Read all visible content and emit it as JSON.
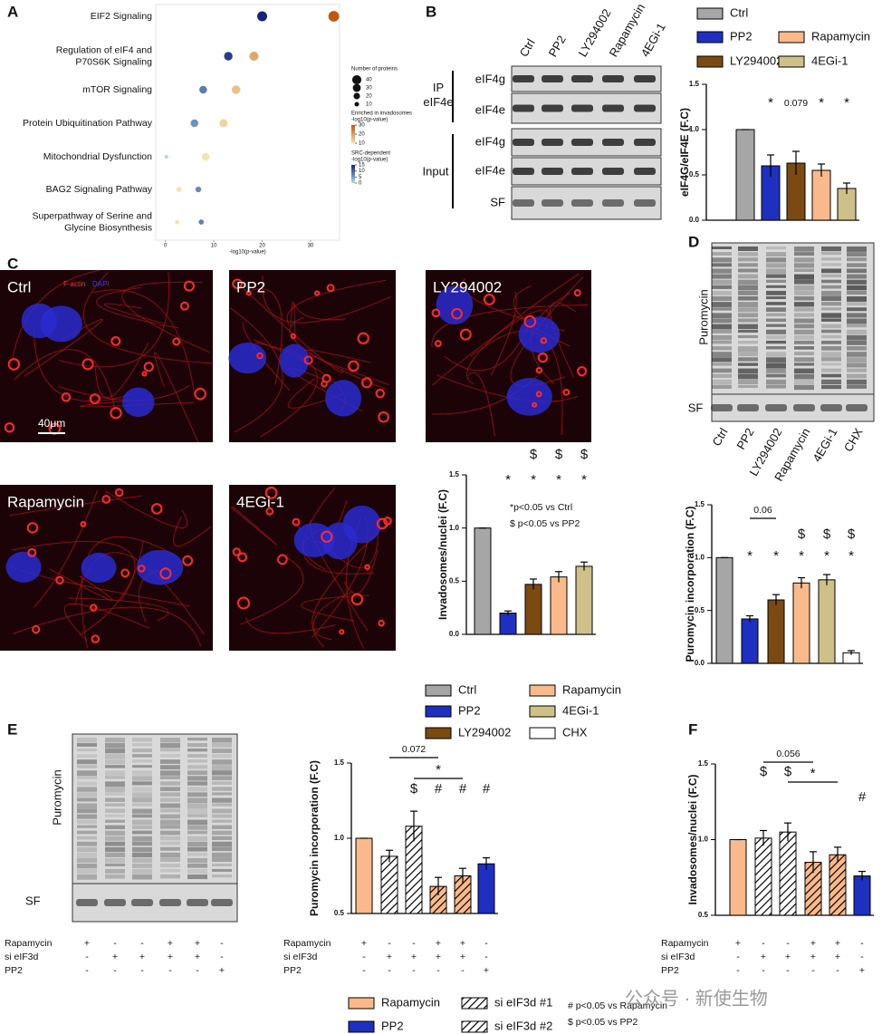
{
  "panel_labels": [
    "A",
    "B",
    "C",
    "D",
    "E",
    "F"
  ],
  "chart_data": [
    {
      "type": "scatter",
      "categories": [
        "EIF2 Signaling",
        "Regulation of eIF4 and\nP70S6K Signaling",
        "mTOR Signaling",
        "Protein Ubiquitination Pathway",
        "Mitochondrial Dysfunction",
        "BAG2 Signaling Pathway",
        "Superpathway of Serine and\nGlycine Biosynthesis"
      ],
      "series": [
        {
          "name": "Enriched in invadosomes\n-log10(p-value)",
          "color": [
            "#f6e2a6",
            "#c2570e"
          ],
          "values": [
            34.8,
            18.3,
            14.6,
            12,
            8.3,
            2.8,
            2.4
          ],
          "sizes": [
            35,
            25,
            22,
            20,
            18,
            8,
            5
          ],
          "colorbar_ticks": [
            30,
            20,
            10
          ]
        },
        {
          "name": "SRC-dependent\n-log10(p-value)",
          "color": [
            "#a8dcec",
            "#14237e"
          ],
          "values": [
            20,
            13,
            7.8,
            6,
            0.2,
            6.8,
            7.4
          ],
          "sizes": [
            30,
            22,
            18,
            18,
            4,
            10,
            8
          ],
          "colorbar_ticks": [
            15,
            10,
            5,
            0
          ]
        }
      ],
      "size_legend": {
        "title": "Number of proteins",
        "values": [
          40,
          30,
          20,
          10
        ]
      },
      "xlabel": "-log10(p-value)",
      "xlim": [
        -2,
        36
      ],
      "xticks": [
        0,
        10,
        20,
        30
      ]
    },
    {
      "type": "bar",
      "ylabel": "eIF4G/eIF4E (F.C)",
      "values": [
        1.0,
        0.6,
        0.63,
        0.55,
        0.35
      ],
      "errors": [
        0,
        0.12,
        0.13,
        0.07,
        0.06
      ],
      "colors": [
        "#a6a6a6",
        "#1f2fbf",
        "#7a4a12",
        "#f9b98a",
        "#cfc08a"
      ],
      "ylim": [
        0,
        1.5
      ],
      "yticks": [
        {
          "value": 0,
          "label": "0.0"
        },
        0.5,
        {
          "value": 1,
          "label": "1.0"
        },
        1.5
      ],
      "significance": [
        [
          null,
          "*",
          "0.079",
          "*",
          "*"
        ]
      ]
    },
    {
      "type": "bar",
      "ylabel": "Invadosomes/nuclei (F.C)",
      "values": [
        1.0,
        0.2,
        0.47,
        0.54,
        0.64
      ],
      "errors": [
        0,
        0.02,
        0.05,
        0.05,
        0.04
      ],
      "colors": [
        "#a6a6a6",
        "#1f2fbf",
        "#7a4a12",
        "#f9b98a",
        "#cfc08a"
      ],
      "ylim": [
        0,
        1.5
      ],
      "yticks": [
        {
          "value": 0,
          "label": "0.0"
        },
        0.5,
        {
          "value": 1,
          "label": "1.0"
        },
        1.5
      ],
      "significance": [
        [
          null,
          null,
          "$",
          "$",
          "$"
        ],
        [
          null,
          "*",
          "*",
          "*",
          "*"
        ]
      ],
      "notes": [
        "*p<0.05 vs Ctrl",
        "$ p<0.05 vs PP2"
      ]
    },
    {
      "type": "bar",
      "ylabel": "Puromycin incorporation (F.C)",
      "values": [
        1.0,
        0.42,
        0.6,
        0.76,
        0.79,
        0.1
      ],
      "errors": [
        0,
        0.03,
        0.05,
        0.05,
        0.05,
        0.02
      ],
      "colors": [
        "#a6a6a6",
        "#1f2fbf",
        "#7a4a12",
        "#f9b98a",
        "#cfc08a",
        "#ffffff"
      ],
      "ylim": [
        0,
        1.5
      ],
      "yticks": [
        {
          "value": 0,
          "label": "0.0"
        },
        0.5,
        {
          "value": 1,
          "label": "1.0"
        },
        1.5
      ],
      "bracket_labels": [
        "0.06"
      ],
      "significance": [
        [
          null,
          null,
          null,
          "$",
          "$",
          "$"
        ],
        [
          null,
          "*",
          "*",
          "*",
          "*",
          "*"
        ]
      ]
    },
    {
      "type": "bar",
      "ylabel": "Puromycin incorporation (F.C)",
      "values": [
        1.0,
        0.88,
        1.08,
        0.68,
        0.75,
        0.83
      ],
      "errors": [
        0,
        0.04,
        0.1,
        0.06,
        0.05,
        0.04
      ],
      "colors": [
        "#f9b98a",
        "#ffffff",
        "#ffffff",
        "#f9b98a",
        "#f9b98a",
        "#1f2fbf"
      ],
      "patterns": [
        null,
        "hatch",
        "hatch",
        "hatch",
        "hatch",
        null
      ],
      "ylim": [
        0.5,
        1.5
      ],
      "yticks": [
        0.5,
        {
          "value": 1,
          "label": "1.0"
        },
        1.5
      ],
      "bracket_labels": [
        "0.072",
        "*"
      ],
      "significance": [
        [
          null,
          null,
          "$",
          "#",
          "#",
          "#"
        ]
      ]
    },
    {
      "type": "bar",
      "ylabel": "Invadosomes/nuclei (F.C)",
      "values": [
        1.0,
        1.01,
        1.05,
        0.85,
        0.9,
        0.76
      ],
      "errors": [
        0,
        0.05,
        0.06,
        0.07,
        0.05,
        0.03
      ],
      "colors": [
        "#f9b98a",
        "#ffffff",
        "#ffffff",
        "#f9b98a",
        "#f9b98a",
        "#1f2fbf"
      ],
      "patterns": [
        null,
        "hatch",
        "hatch",
        "hatch",
        "hatch",
        null
      ],
      "ylim": [
        0.5,
        1.5
      ],
      "yticks": [
        0.5,
        {
          "value": 1,
          "label": "1.0"
        },
        1.5
      ],
      "bracket_labels": [
        "0.056",
        "*"
      ],
      "significance": [
        [
          null,
          "$",
          "$",
          null,
          null,
          null
        ],
        [
          null,
          null,
          null,
          null,
          null,
          "#"
        ]
      ]
    }
  ],
  "conditions": {
    "rows": [
      {
        "label": "Rapamycin",
        "marks": [
          "+",
          "-",
          "-",
          "+",
          "+",
          "-"
        ]
      },
      {
        "label": "si eIF3d",
        "marks": [
          "-",
          "+",
          "+",
          "+",
          "+",
          "-"
        ]
      },
      {
        "label": "PP2",
        "marks": [
          "-",
          "-",
          "-",
          "-",
          "-",
          "+"
        ]
      }
    ]
  },
  "blots": {
    "B": {
      "lanes": [
        "Ctrl",
        "PP2",
        "LY294002",
        "Rapamycin",
        "4EGi-1"
      ],
      "rows": [
        "eIF4g",
        "eIF4e",
        "eIF4g",
        "eIF4e",
        "SF"
      ],
      "groups": [
        "IP\neIF4e",
        "Input"
      ]
    },
    "D": {
      "lanes": [
        "Ctrl",
        "PP2",
        "LY294002",
        "Rapamycin",
        "4EGi-1",
        "CHX"
      ],
      "rows": [
        "Puromycin",
        "SF"
      ]
    },
    "E": {
      "rows": [
        "Puromycin",
        "SF"
      ]
    }
  },
  "micrographs": {
    "labels": [
      "Ctrl",
      "PP2",
      "LY294002",
      "Rapamycin",
      "4EGi-1"
    ],
    "stains": [
      "F-actin",
      "DAPI"
    ],
    "scale_bar": "40μm"
  },
  "legends": [
    {
      "items": [
        {
          "name": "Ctrl",
          "color": "#a6a6a6"
        },
        {
          "name": "PP2",
          "color": "#1f2fbf"
        },
        {
          "name": "Rapamycin",
          "color": "#f9b98a"
        },
        {
          "name": "LY294002",
          "color": "#7a4a12"
        },
        {
          "name": "4EGi-1",
          "color": "#cfc08a"
        }
      ]
    },
    {
      "items": [
        {
          "name": "Ctrl",
          "color": "#a6a6a6"
        },
        {
          "name": "Rapamycin",
          "color": "#f9b98a"
        },
        {
          "name": "PP2",
          "color": "#1f2fbf"
        },
        {
          "name": "4EGi-1",
          "color": "#cfc08a"
        },
        {
          "name": "LY294002",
          "color": "#7a4a12"
        },
        {
          "name": "CHX",
          "color": "#ffffff"
        }
      ]
    },
    {
      "items": [
        {
          "name": "Rapamycin",
          "color": "#f9b98a"
        },
        {
          "name": "si eIF3d #1",
          "color": "#ffffff",
          "pattern": "hatch"
        },
        {
          "name": "PP2",
          "color": "#1f2fbf"
        },
        {
          "name": "si eIF3d #2",
          "color": "#ffffff",
          "pattern": "hatch"
        }
      ],
      "notes": [
        "# p<0.05 vs Rapamycin",
        "$ p<0.05 vs PP2"
      ]
    }
  ],
  "watermark": "公众号 · 新使生物"
}
